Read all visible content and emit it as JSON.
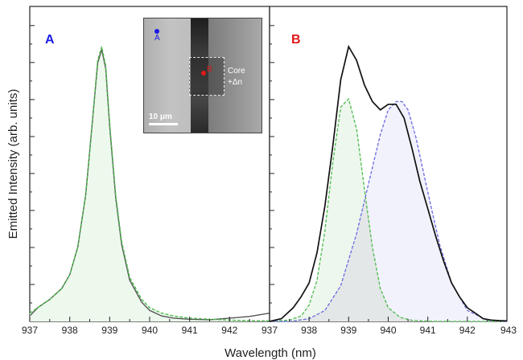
{
  "chart_data": [
    {
      "panel": "A",
      "type": "line",
      "title": "A",
      "xlabel": "Wavelength (nm)",
      "ylabel": "Emitted Intensity (arb. units)",
      "xlim": [
        937,
        943
      ],
      "ylim": [
        0,
        1.05
      ],
      "x_ticks": [
        "937",
        "938",
        "939",
        "940",
        "941",
        "942",
        "943"
      ],
      "grid": false,
      "colors": {
        "measured": "#555555",
        "fit": "#4cbb4c",
        "fit_fill": "#eef9ee"
      },
      "series": [
        {
          "style": "measured (dark solid)",
          "x": [
            937.0,
            937.2,
            937.5,
            937.8,
            938.0,
            938.2,
            938.4,
            938.55,
            938.7,
            938.8,
            938.9,
            939.0,
            939.15,
            939.3,
            939.5,
            939.8,
            940.0,
            940.3,
            940.6,
            941.0,
            941.5,
            942.0,
            942.5,
            943.0
          ],
          "y": [
            0.02,
            0.05,
            0.08,
            0.12,
            0.17,
            0.27,
            0.46,
            0.7,
            0.94,
            0.99,
            0.92,
            0.71,
            0.45,
            0.28,
            0.15,
            0.07,
            0.04,
            0.02,
            0.012,
            0.008,
            0.006,
            0.012,
            0.018,
            0.03
          ]
        },
        {
          "style": "fit (green dashed, filled)",
          "x": [
            937.0,
            937.2,
            937.5,
            937.8,
            938.0,
            938.2,
            938.4,
            938.55,
            938.7,
            938.8,
            938.9,
            939.0,
            939.15,
            939.3,
            939.5,
            939.8,
            940.0,
            940.3,
            940.6,
            941.0,
            941.5,
            942.0,
            942.5,
            943.0
          ],
          "y": [
            0.03,
            0.05,
            0.08,
            0.12,
            0.17,
            0.27,
            0.46,
            0.7,
            0.95,
            1.0,
            0.93,
            0.72,
            0.46,
            0.29,
            0.16,
            0.08,
            0.05,
            0.03,
            0.02,
            0.012,
            0.008,
            0.005,
            0.003,
            0.002
          ]
        }
      ]
    },
    {
      "panel": "B",
      "type": "line",
      "title": "B",
      "xlabel": "Wavelength (nm)",
      "xlim": [
        937,
        943
      ],
      "ylim": [
        0,
        1.05
      ],
      "x_ticks": [
        "937",
        "938",
        "939",
        "940",
        "941",
        "942",
        "943"
      ],
      "grid": false,
      "colors": {
        "measured": "#111111",
        "fit1": "#4cbb4c",
        "fit1_fill": "#eef7ee",
        "fit2": "#6b6be0",
        "fit2_fill": "#f2f2fc",
        "overlap": "#e3e7e8"
      },
      "series": [
        {
          "style": "measured (black solid)",
          "x": [
            937.0,
            937.3,
            937.6,
            937.8,
            938.0,
            938.2,
            938.4,
            938.6,
            938.8,
            939.0,
            939.2,
            939.4,
            939.6,
            939.8,
            940.0,
            940.2,
            940.4,
            940.6,
            940.8,
            941.0,
            941.2,
            941.4,
            941.6,
            941.8,
            942.0,
            942.2,
            942.4,
            942.6,
            942.8,
            943.0
          ],
          "y": [
            0.0,
            0.01,
            0.05,
            0.09,
            0.14,
            0.25,
            0.42,
            0.64,
            0.88,
            1.0,
            0.95,
            0.86,
            0.8,
            0.77,
            0.79,
            0.79,
            0.74,
            0.63,
            0.51,
            0.41,
            0.31,
            0.22,
            0.14,
            0.09,
            0.05,
            0.03,
            0.01,
            0.005,
            0.003,
            0.002
          ]
        },
        {
          "style": "fit peak 1 (green dashed, filled)",
          "x": [
            937.0,
            937.5,
            937.8,
            938.0,
            938.2,
            938.4,
            938.6,
            938.8,
            939.0,
            939.2,
            939.4,
            939.6,
            939.8,
            940.0,
            940.3,
            940.6,
            941.0,
            941.5,
            942.0,
            942.5,
            943.0
          ],
          "y": [
            0.0,
            0.005,
            0.02,
            0.06,
            0.15,
            0.33,
            0.58,
            0.78,
            0.81,
            0.7,
            0.48,
            0.27,
            0.12,
            0.05,
            0.015,
            0.004,
            0.001,
            0.0,
            0.0,
            0.0,
            0.0
          ]
        },
        {
          "style": "fit peak 2 (blue dashed, filled)",
          "x": [
            937.0,
            937.5,
            938.0,
            938.4,
            938.8,
            939.2,
            939.5,
            939.8,
            940.0,
            940.2,
            940.35,
            940.5,
            940.7,
            941.0,
            941.3,
            941.6,
            942.0,
            942.5,
            943.0
          ],
          "y": [
            0.0,
            0.0,
            0.01,
            0.04,
            0.13,
            0.32,
            0.5,
            0.68,
            0.77,
            0.8,
            0.8,
            0.77,
            0.67,
            0.47,
            0.28,
            0.14,
            0.04,
            0.005,
            0.0
          ]
        }
      ]
    }
  ],
  "inset": {
    "label_A": "A",
    "label_B": "B",
    "core_label_line1": "Core",
    "core_label_line2": "+Δn",
    "scale_text": "10 μm",
    "colors": {
      "dot_A": "#1a1ae6",
      "dot_B": "#e01818"
    }
  }
}
